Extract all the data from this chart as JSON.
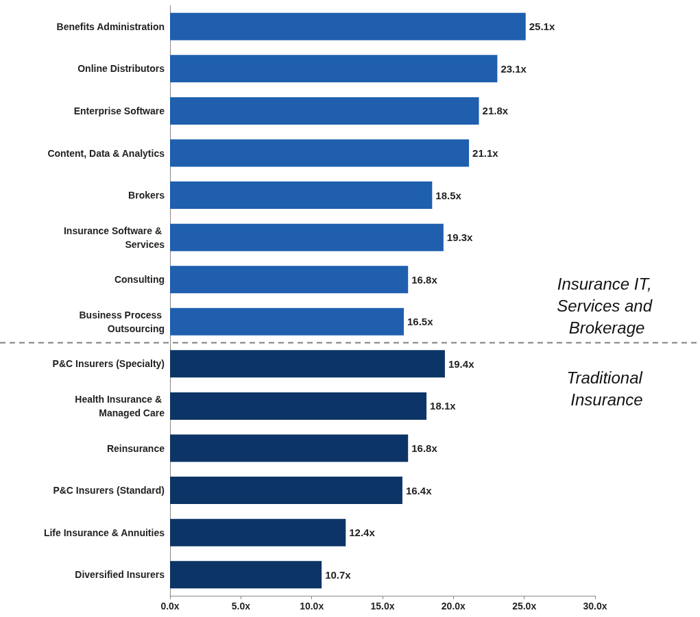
{
  "chart_data": {
    "type": "bar",
    "orientation": "horizontal",
    "categories": [
      "Benefits Administration",
      "Online Distributors",
      "Enterprise Software",
      "Content, Data & Analytics",
      "Brokers",
      "Insurance Software & Services",
      "Consulting",
      "Business Process Outsourcing",
      "P&C Insurers (Specialty)",
      "Health Insurance & Managed Care",
      "Reinsurance",
      "P&C Insurers (Standard)",
      "Life Insurance & Annuities",
      "Diversified Insurers"
    ],
    "values": [
      25.1,
      23.1,
      21.8,
      21.1,
      18.5,
      19.3,
      16.8,
      16.5,
      19.4,
      18.1,
      16.8,
      16.4,
      12.4,
      10.7
    ],
    "value_labels": [
      "25.1x",
      "23.1x",
      "21.8x",
      "21.1x",
      "18.5x",
      "19.3x",
      "16.8x",
      "16.5x",
      "19.4x",
      "18.1x",
      "16.8x",
      "16.4x",
      "12.4x",
      "10.7x"
    ],
    "colors": [
      "#1f5fae",
      "#1f5fae",
      "#1f5fae",
      "#1f5fae",
      "#1f5fae",
      "#1f5fae",
      "#1f5fae",
      "#1f5fae",
      "#0d3466",
      "#0d3466",
      "#0d3466",
      "#0d3466",
      "#0d3466",
      "#0d3466"
    ],
    "xlim": [
      0,
      30
    ],
    "xticks": [
      {
        "value": 0,
        "label": "0.0x"
      },
      {
        "value": 5,
        "label": "5.0x"
      },
      {
        "value": 10,
        "label": "10.0x"
      },
      {
        "value": 15,
        "label": "15.0x"
      },
      {
        "value": 20,
        "label": "20.0x"
      },
      {
        "value": 25,
        "label": "25.0x"
      },
      {
        "value": 30,
        "label": "30.0x"
      }
    ],
    "grid": false,
    "annotations": [
      "Insurance IT, Services and Brokerage",
      "Traditional Insurance"
    ]
  }
}
